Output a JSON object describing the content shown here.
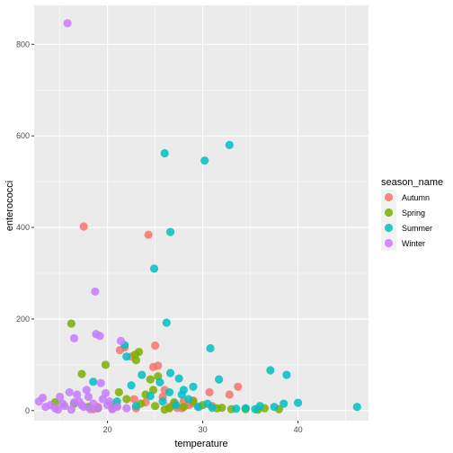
{
  "chart_data": {
    "type": "scatter",
    "title": "",
    "xlabel": "temperature",
    "ylabel": "enterococci",
    "xlim": [
      12.3,
      47.4
    ],
    "ylim": [
      -22,
      885
    ],
    "x_ticks": [
      20,
      30,
      40
    ],
    "y_ticks": [
      0,
      200,
      400,
      600,
      800
    ],
    "grid": true,
    "legend": {
      "title": "season_name",
      "position": "right"
    },
    "series": [
      {
        "name": "Autumn",
        "color": "#F8766D",
        "points": [
          [
            17.5,
            402
          ],
          [
            24.3,
            384
          ],
          [
            25.0,
            142
          ],
          [
            21.8,
            138
          ],
          [
            22.5,
            118
          ],
          [
            21.3,
            132
          ],
          [
            24.8,
            95
          ],
          [
            25.3,
            98
          ],
          [
            33.7,
            52
          ],
          [
            32.8,
            35
          ],
          [
            29.0,
            22
          ],
          [
            30.7,
            40
          ],
          [
            28.0,
            20
          ],
          [
            27.0,
            15
          ],
          [
            28.5,
            12
          ],
          [
            26.5,
            8
          ],
          [
            23.0,
            5
          ],
          [
            21.0,
            10
          ],
          [
            19.0,
            8
          ],
          [
            25.8,
            30
          ],
          [
            24.0,
            18
          ],
          [
            29.6,
            8
          ],
          [
            27.8,
            5
          ],
          [
            22.8,
            25
          ],
          [
            20.5,
            4
          ],
          [
            31.0,
            10
          ],
          [
            26.0,
            45
          ],
          [
            18.5,
            3
          ],
          [
            28.8,
            15
          ],
          [
            27.3,
            6
          ]
        ]
      },
      {
        "name": "Spring",
        "color": "#7CAE00",
        "points": [
          [
            16.2,
            190
          ],
          [
            23.3,
            128
          ],
          [
            22.9,
            122
          ],
          [
            23.0,
            110
          ],
          [
            19.8,
            100
          ],
          [
            17.3,
            80
          ],
          [
            25.3,
            75
          ],
          [
            24.5,
            68
          ],
          [
            14.5,
            18
          ],
          [
            16.5,
            15
          ],
          [
            18.0,
            8
          ],
          [
            20.5,
            12
          ],
          [
            22.0,
            25
          ],
          [
            23.5,
            15
          ],
          [
            25.0,
            10
          ],
          [
            26.5,
            5
          ],
          [
            28.0,
            8
          ],
          [
            30.0,
            12
          ],
          [
            31.5,
            5
          ],
          [
            33.0,
            3
          ],
          [
            34.5,
            3
          ],
          [
            36.5,
            5
          ],
          [
            38.0,
            3
          ],
          [
            21.2,
            40
          ],
          [
            24.0,
            35
          ],
          [
            27.0,
            18
          ],
          [
            29.0,
            20
          ],
          [
            32.0,
            6
          ],
          [
            35.8,
            2
          ],
          [
            19.0,
            5
          ],
          [
            26.0,
            2
          ],
          [
            24.8,
            45
          ]
        ]
      },
      {
        "name": "Summer",
        "color": "#00BFC4",
        "points": [
          [
            32.8,
            580
          ],
          [
            26.0,
            562
          ],
          [
            30.2,
            546
          ],
          [
            26.6,
            390
          ],
          [
            24.9,
            310
          ],
          [
            26.2,
            192
          ],
          [
            30.8,
            136
          ],
          [
            21.8,
            143
          ],
          [
            22.0,
            118
          ],
          [
            37.1,
            88
          ],
          [
            38.8,
            78
          ],
          [
            26.6,
            82
          ],
          [
            27.5,
            70
          ],
          [
            25.5,
            62
          ],
          [
            23.6,
            78
          ],
          [
            31.7,
            68
          ],
          [
            29.0,
            52
          ],
          [
            28.0,
            45
          ],
          [
            26.5,
            40
          ],
          [
            27.8,
            35
          ],
          [
            24.5,
            32
          ],
          [
            28.5,
            25
          ],
          [
            25.8,
            20
          ],
          [
            30.5,
            15
          ],
          [
            34.5,
            5
          ],
          [
            35.5,
            3
          ],
          [
            37.5,
            8
          ],
          [
            38.5,
            15
          ],
          [
            40.0,
            17
          ],
          [
            46.2,
            8
          ],
          [
            36.0,
            10
          ],
          [
            29.5,
            8
          ],
          [
            23.0,
            10
          ],
          [
            33.5,
            4
          ],
          [
            27.2,
            12
          ],
          [
            21.0,
            20
          ],
          [
            18.5,
            63
          ],
          [
            22.5,
            55
          ],
          [
            31.0,
            6
          ]
        ]
      },
      {
        "name": "Winter",
        "color": "#C77CFF",
        "points": [
          [
            15.8,
            846
          ],
          [
            18.7,
            260
          ],
          [
            18.8,
            167
          ],
          [
            19.2,
            163
          ],
          [
            16.5,
            158
          ],
          [
            21.4,
            152
          ],
          [
            12.8,
            20
          ],
          [
            13.2,
            28
          ],
          [
            14.0,
            12
          ],
          [
            14.5,
            5
          ],
          [
            15.0,
            30
          ],
          [
            15.5,
            10
          ],
          [
            16.0,
            40
          ],
          [
            16.8,
            35
          ],
          [
            17.0,
            20
          ],
          [
            17.5,
            8
          ],
          [
            18.0,
            30
          ],
          [
            18.5,
            15
          ],
          [
            19.0,
            5
          ],
          [
            19.5,
            25
          ],
          [
            20.0,
            12
          ],
          [
            20.5,
            3
          ],
          [
            21.0,
            8
          ],
          [
            16.2,
            2
          ],
          [
            17.8,
            45
          ],
          [
            19.8,
            38
          ],
          [
            14.8,
            2
          ],
          [
            16.5,
            18
          ],
          [
            18.2,
            3
          ],
          [
            20.2,
            20
          ],
          [
            15.3,
            15
          ],
          [
            22.0,
            5
          ],
          [
            13.5,
            8
          ],
          [
            17.3,
            12
          ],
          [
            19.3,
            60
          ]
        ]
      }
    ]
  }
}
